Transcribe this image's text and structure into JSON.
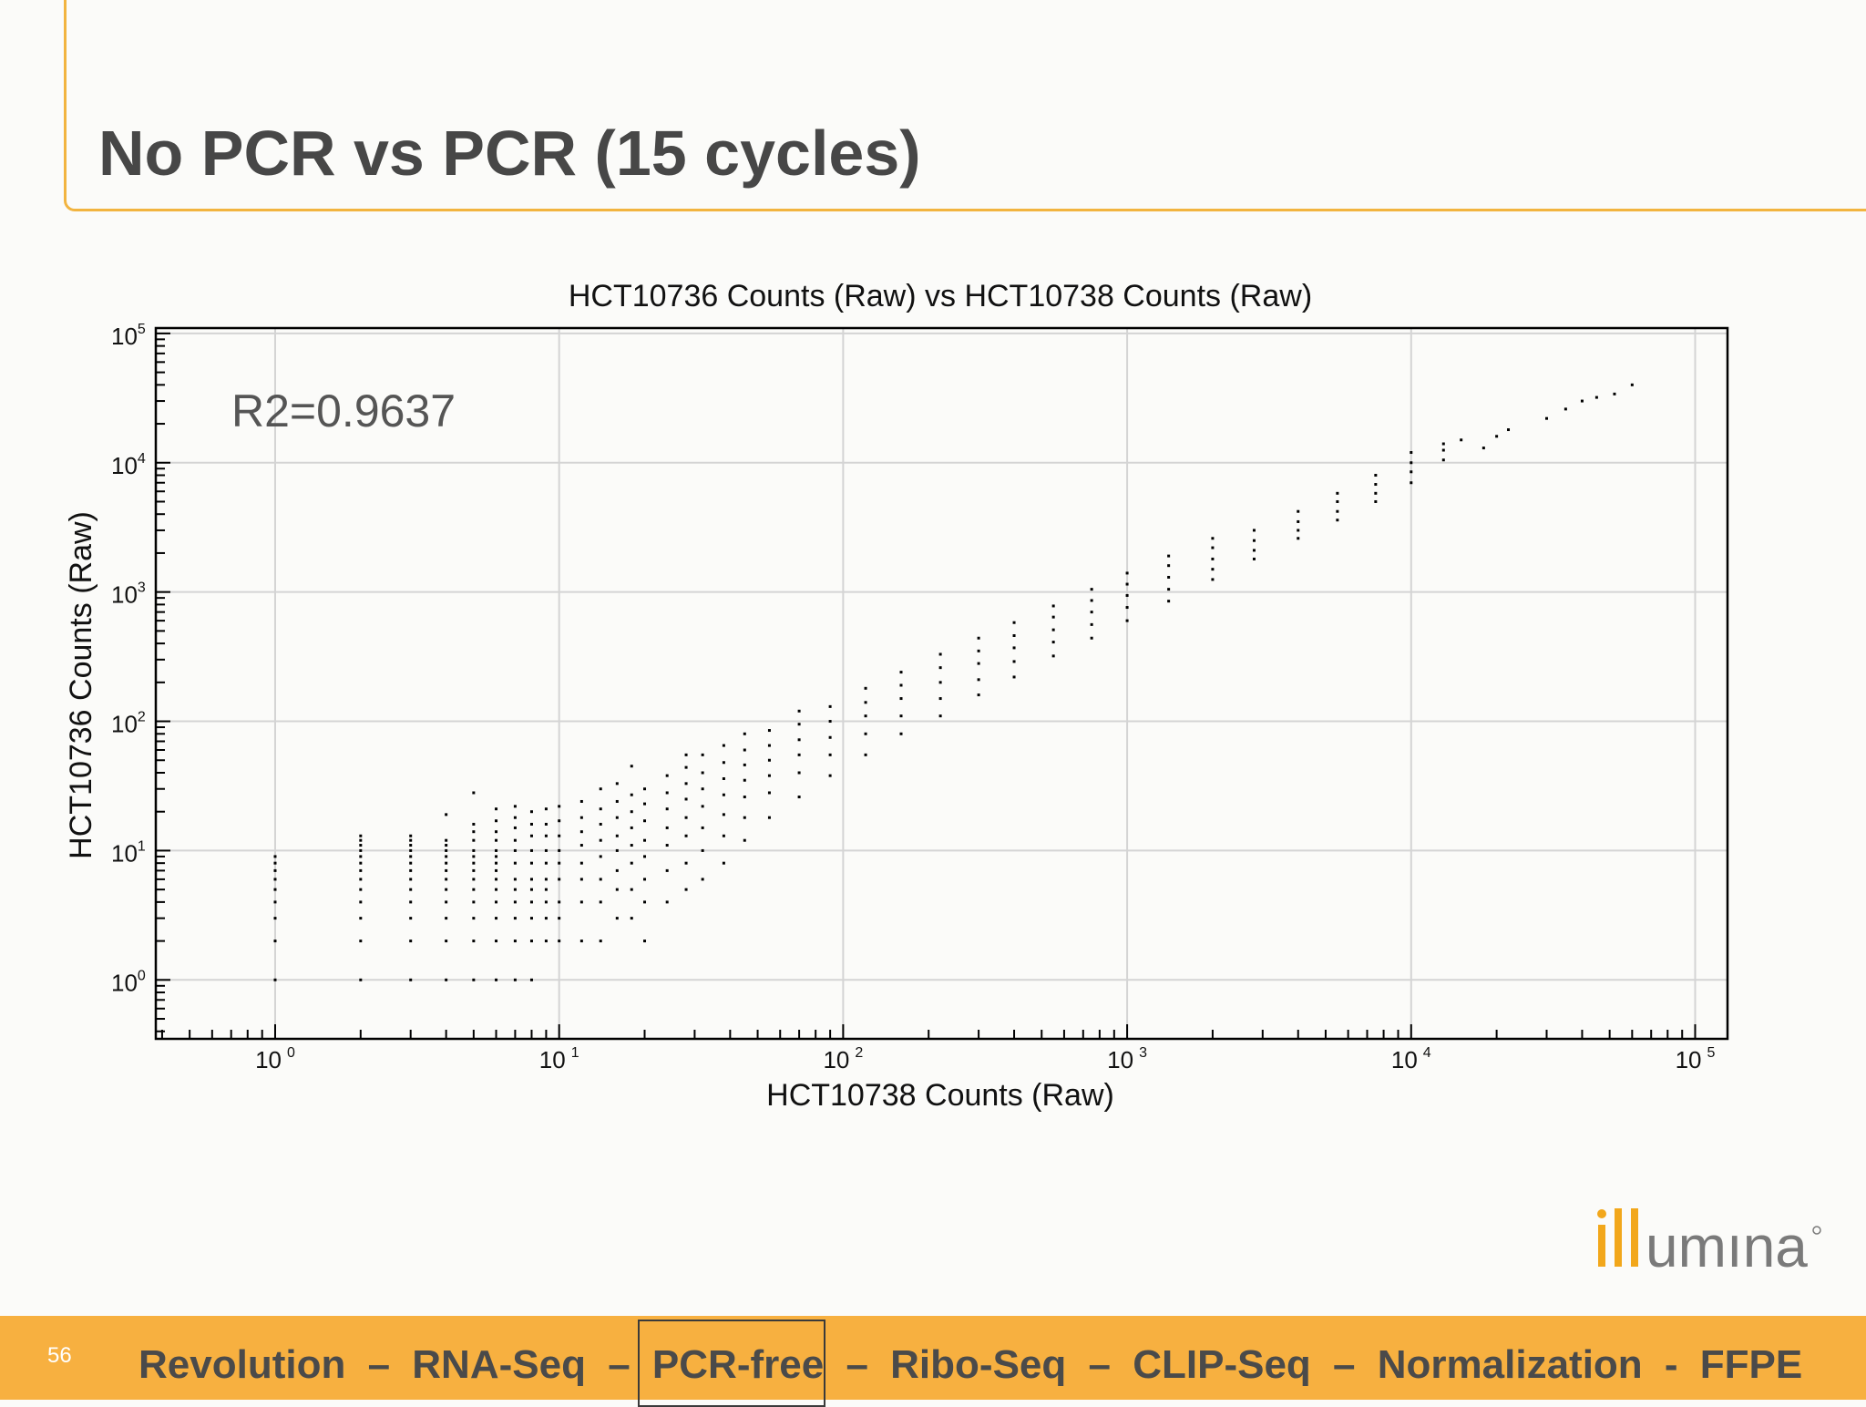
{
  "slide": {
    "title": "No PCR vs PCR (15 cycles)",
    "number": "56",
    "brand_logo_text": "illumina",
    "accent_color": "#f7b040"
  },
  "footer_nav": [
    {
      "label": "Revolution",
      "highlighted": false
    },
    {
      "label": "RNA-Seq",
      "highlighted": false
    },
    {
      "label": "PCR-free",
      "highlighted": true
    },
    {
      "label": "Ribo-Seq",
      "highlighted": false
    },
    {
      "label": "CLIP-Seq",
      "highlighted": false
    },
    {
      "label": "Normalization",
      "highlighted": false
    },
    {
      "label": "FFPE",
      "highlighted": false
    }
  ],
  "footer_separators": [
    "–",
    "–",
    "–",
    "–",
    "–",
    "-"
  ],
  "chart_data": {
    "type": "scatter",
    "title": "HCT10736 Counts (Raw) vs HCT10738 Counts (Raw)",
    "xlabel": "HCT10738 Counts (Raw)",
    "ylabel": "HCT10736 Counts (Raw)",
    "annotation": "R2=0.9637",
    "x_scale": "log",
    "y_scale": "log",
    "xlim": [
      0.38,
      130000
    ],
    "ylim": [
      0.35,
      110000
    ],
    "x_ticks": [
      {
        "base": "10",
        "exp": "0",
        "value": 1
      },
      {
        "base": "10",
        "exp": "1",
        "value": 10
      },
      {
        "base": "10",
        "exp": "2",
        "value": 100
      },
      {
        "base": "10",
        "exp": "3",
        "value": 1000
      },
      {
        "base": "10",
        "exp": "4",
        "value": 10000
      },
      {
        "base": "10",
        "exp": "5",
        "value": 100000
      }
    ],
    "y_ticks": [
      {
        "base": "10",
        "exp": "0",
        "value": 1
      },
      {
        "base": "10",
        "exp": "1",
        "value": 10
      },
      {
        "base": "10",
        "exp": "2",
        "value": 100
      },
      {
        "base": "10",
        "exp": "3",
        "value": 1000
      },
      {
        "base": "10",
        "exp": "4",
        "value": 10000
      },
      {
        "base": "10",
        "exp": "5",
        "value": 100000
      }
    ],
    "grid": true,
    "point_color": "#000000",
    "points": [
      [
        1,
        1
      ],
      [
        1,
        2
      ],
      [
        1,
        3
      ],
      [
        1,
        4
      ],
      [
        1,
        5
      ],
      [
        1,
        6
      ],
      [
        1,
        7
      ],
      [
        1,
        8
      ],
      [
        1,
        9
      ],
      [
        2,
        1
      ],
      [
        2,
        2
      ],
      [
        2,
        3
      ],
      [
        2,
        4
      ],
      [
        2,
        5
      ],
      [
        2,
        6
      ],
      [
        2,
        7
      ],
      [
        2,
        8
      ],
      [
        2,
        9
      ],
      [
        2,
        10
      ],
      [
        2,
        11
      ],
      [
        2,
        12
      ],
      [
        2,
        13
      ],
      [
        3,
        1
      ],
      [
        3,
        2
      ],
      [
        3,
        3
      ],
      [
        3,
        4
      ],
      [
        3,
        5
      ],
      [
        3,
        6
      ],
      [
        3,
        7
      ],
      [
        3,
        8
      ],
      [
        3,
        9
      ],
      [
        3,
        10
      ],
      [
        3,
        11
      ],
      [
        3,
        12
      ],
      [
        3,
        13
      ],
      [
        4,
        1
      ],
      [
        4,
        2
      ],
      [
        4,
        3
      ],
      [
        4,
        4
      ],
      [
        4,
        5
      ],
      [
        4,
        6
      ],
      [
        4,
        7
      ],
      [
        4,
        8
      ],
      [
        4,
        9
      ],
      [
        4,
        10
      ],
      [
        4,
        11
      ],
      [
        4,
        12
      ],
      [
        4,
        19
      ],
      [
        5,
        1
      ],
      [
        5,
        2
      ],
      [
        5,
        3
      ],
      [
        5,
        4
      ],
      [
        5,
        5
      ],
      [
        5,
        6
      ],
      [
        5,
        7
      ],
      [
        5,
        8
      ],
      [
        5,
        9
      ],
      [
        5,
        10
      ],
      [
        5,
        12
      ],
      [
        5,
        14
      ],
      [
        5,
        16
      ],
      [
        5,
        28
      ],
      [
        6,
        1
      ],
      [
        6,
        2
      ],
      [
        6,
        3
      ],
      [
        6,
        4
      ],
      [
        6,
        5
      ],
      [
        6,
        6
      ],
      [
        6,
        7
      ],
      [
        6,
        8
      ],
      [
        6,
        9
      ],
      [
        6,
        10
      ],
      [
        6,
        12
      ],
      [
        6,
        14
      ],
      [
        6,
        17
      ],
      [
        6,
        21
      ],
      [
        7,
        1
      ],
      [
        7,
        2
      ],
      [
        7,
        3
      ],
      [
        7,
        4
      ],
      [
        7,
        5
      ],
      [
        7,
        6
      ],
      [
        7,
        8
      ],
      [
        7,
        10
      ],
      [
        7,
        12
      ],
      [
        7,
        15
      ],
      [
        7,
        18
      ],
      [
        7,
        22
      ],
      [
        8,
        1
      ],
      [
        8,
        2
      ],
      [
        8,
        3
      ],
      [
        8,
        4
      ],
      [
        8,
        5
      ],
      [
        8,
        6
      ],
      [
        8,
        8
      ],
      [
        8,
        10
      ],
      [
        8,
        13
      ],
      [
        8,
        16
      ],
      [
        8,
        20
      ],
      [
        9,
        2
      ],
      [
        9,
        3
      ],
      [
        9,
        4
      ],
      [
        9,
        5
      ],
      [
        9,
        6
      ],
      [
        9,
        8
      ],
      [
        9,
        10
      ],
      [
        9,
        13
      ],
      [
        9,
        16
      ],
      [
        9,
        21
      ],
      [
        10,
        2
      ],
      [
        10,
        3
      ],
      [
        10,
        4
      ],
      [
        10,
        6
      ],
      [
        10,
        8
      ],
      [
        10,
        10
      ],
      [
        10,
        13
      ],
      [
        10,
        17
      ],
      [
        10,
        22
      ],
      [
        12,
        2
      ],
      [
        12,
        4
      ],
      [
        12,
        6
      ],
      [
        12,
        8
      ],
      [
        12,
        11
      ],
      [
        12,
        14
      ],
      [
        12,
        18
      ],
      [
        12,
        24
      ],
      [
        14,
        2
      ],
      [
        14,
        4
      ],
      [
        14,
        6
      ],
      [
        14,
        9
      ],
      [
        14,
        12
      ],
      [
        14,
        16
      ],
      [
        14,
        21
      ],
      [
        14,
        30
      ],
      [
        16,
        3
      ],
      [
        16,
        5
      ],
      [
        16,
        7
      ],
      [
        16,
        10
      ],
      [
        16,
        13
      ],
      [
        16,
        18
      ],
      [
        16,
        24
      ],
      [
        16,
        33
      ],
      [
        18,
        3
      ],
      [
        18,
        5
      ],
      [
        18,
        8
      ],
      [
        18,
        11
      ],
      [
        18,
        15
      ],
      [
        18,
        20
      ],
      [
        18,
        27
      ],
      [
        18,
        45
      ],
      [
        20,
        2
      ],
      [
        20,
        4
      ],
      [
        20,
        6
      ],
      [
        20,
        9
      ],
      [
        20,
        12
      ],
      [
        20,
        17
      ],
      [
        20,
        23
      ],
      [
        20,
        30
      ],
      [
        24,
        4
      ],
      [
        24,
        7
      ],
      [
        24,
        11
      ],
      [
        24,
        15
      ],
      [
        24,
        21
      ],
      [
        24,
        28
      ],
      [
        24,
        38
      ],
      [
        28,
        5
      ],
      [
        28,
        8
      ],
      [
        28,
        13
      ],
      [
        28,
        18
      ],
      [
        28,
        25
      ],
      [
        28,
        33
      ],
      [
        28,
        44
      ],
      [
        28,
        55
      ],
      [
        32,
        6
      ],
      [
        32,
        10
      ],
      [
        32,
        15
      ],
      [
        32,
        22
      ],
      [
        32,
        30
      ],
      [
        32,
        40
      ],
      [
        32,
        55
      ],
      [
        38,
        8
      ],
      [
        38,
        13
      ],
      [
        38,
        19
      ],
      [
        38,
        27
      ],
      [
        38,
        36
      ],
      [
        38,
        48
      ],
      [
        38,
        65
      ],
      [
        45,
        12
      ],
      [
        45,
        18
      ],
      [
        45,
        26
      ],
      [
        45,
        35
      ],
      [
        45,
        46
      ],
      [
        45,
        60
      ],
      [
        45,
        80
      ],
      [
        55,
        18
      ],
      [
        55,
        28
      ],
      [
        55,
        38
      ],
      [
        55,
        50
      ],
      [
        55,
        65
      ],
      [
        55,
        85
      ],
      [
        70,
        26
      ],
      [
        70,
        40
      ],
      [
        70,
        55
      ],
      [
        70,
        72
      ],
      [
        70,
        95
      ],
      [
        70,
        120
      ],
      [
        90,
        38
      ],
      [
        90,
        55
      ],
      [
        90,
        75
      ],
      [
        90,
        100
      ],
      [
        90,
        130
      ],
      [
        120,
        55
      ],
      [
        120,
        80
      ],
      [
        120,
        110
      ],
      [
        120,
        140
      ],
      [
        120,
        180
      ],
      [
        160,
        80
      ],
      [
        160,
        110
      ],
      [
        160,
        150
      ],
      [
        160,
        190
      ],
      [
        160,
        240
      ],
      [
        220,
        110
      ],
      [
        220,
        150
      ],
      [
        220,
        200
      ],
      [
        220,
        260
      ],
      [
        220,
        330
      ],
      [
        300,
        160
      ],
      [
        300,
        210
      ],
      [
        300,
        280
      ],
      [
        300,
        350
      ],
      [
        300,
        440
      ],
      [
        400,
        220
      ],
      [
        400,
        290
      ],
      [
        400,
        370
      ],
      [
        400,
        460
      ],
      [
        400,
        580
      ],
      [
        550,
        320
      ],
      [
        550,
        410
      ],
      [
        550,
        510
      ],
      [
        550,
        640
      ],
      [
        550,
        780
      ],
      [
        750,
        440
      ],
      [
        750,
        560
      ],
      [
        750,
        700
      ],
      [
        750,
        860
      ],
      [
        750,
        1050
      ],
      [
        1000,
        600
      ],
      [
        1000,
        760
      ],
      [
        1000,
        940
      ],
      [
        1000,
        1150
      ],
      [
        1000,
        1400
      ],
      [
        1400,
        850
      ],
      [
        1400,
        1050
      ],
      [
        1400,
        1300
      ],
      [
        1400,
        1600
      ],
      [
        1400,
        1900
      ],
      [
        2000,
        1250
      ],
      [
        2000,
        1500
      ],
      [
        2000,
        1800
      ],
      [
        2000,
        2200
      ],
      [
        2000,
        2600
      ],
      [
        2800,
        1800
      ],
      [
        2800,
        2100
      ],
      [
        2800,
        2500
      ],
      [
        2800,
        3000
      ],
      [
        4000,
        2600
      ],
      [
        4000,
        3000
      ],
      [
        4000,
        3500
      ],
      [
        4000,
        4200
      ],
      [
        5500,
        3600
      ],
      [
        5500,
        4200
      ],
      [
        5500,
        5000
      ],
      [
        5500,
        5800
      ],
      [
        7500,
        5000
      ],
      [
        7500,
        5800
      ],
      [
        7500,
        6800
      ],
      [
        7500,
        8000
      ],
      [
        10000,
        7000
      ],
      [
        10000,
        8500
      ],
      [
        10000,
        10000
      ],
      [
        10000,
        12000
      ],
      [
        13000,
        10500
      ],
      [
        13000,
        12500
      ],
      [
        13000,
        14000
      ],
      [
        15000,
        15000
      ],
      [
        18000,
        13000
      ],
      [
        20000,
        16000
      ],
      [
        22000,
        18000
      ],
      [
        30000,
        22000
      ],
      [
        35000,
        26000
      ],
      [
        40000,
        30000
      ],
      [
        45000,
        32000
      ],
      [
        52000,
        34000
      ],
      [
        60000,
        40000
      ]
    ]
  }
}
